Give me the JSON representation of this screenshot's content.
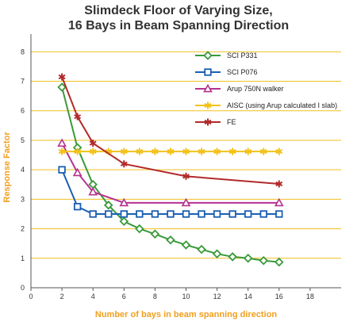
{
  "chart_data": {
    "type": "line",
    "title": "Slimdeck Floor of Varying Size,",
    "subtitle": "16 Bays in Beam Spanning Direction",
    "xlabel": "Number of bays in beam spanning direction",
    "ylabel": "Response Factor",
    "xlim": [
      0,
      20
    ],
    "ylim": [
      0,
      8.6
    ],
    "xticks": [
      "0",
      "2",
      "4",
      "6",
      "8",
      "10",
      "12",
      "14",
      "16",
      "18"
    ],
    "yticks": [
      "0",
      "1",
      "2",
      "3",
      "4",
      "5",
      "6",
      "7",
      "8"
    ],
    "grid": "horizontal",
    "legend_position": "top-right",
    "colors": {
      "axis_title": "#f0a020",
      "gridline": "#f0c020"
    },
    "series": [
      {
        "name": "SCI P331",
        "color": "#3a9a3a",
        "marker": "diamond",
        "x": [
          2,
          3,
          4,
          5,
          6,
          7,
          8,
          9,
          10,
          11,
          12,
          13,
          14,
          15,
          16
        ],
        "y": [
          6.8,
          4.75,
          3.5,
          2.8,
          2.25,
          2.0,
          1.82,
          1.62,
          1.45,
          1.3,
          1.15,
          1.05,
          1.0,
          0.92,
          0.87
        ]
      },
      {
        "name": "SCI P076",
        "color": "#1a5fb4",
        "marker": "square",
        "x": [
          2,
          3,
          4,
          5,
          6,
          7,
          8,
          9,
          10,
          11,
          12,
          13,
          14,
          15,
          16
        ],
        "y": [
          4.0,
          2.75,
          2.5,
          2.5,
          2.5,
          2.5,
          2.5,
          2.5,
          2.5,
          2.5,
          2.5,
          2.5,
          2.5,
          2.5,
          2.5
        ]
      },
      {
        "name": "Arup 750N walker",
        "color": "#b5318f",
        "marker": "triangle",
        "x": [
          2,
          3,
          4,
          6,
          10,
          16
        ],
        "y": [
          4.9,
          3.9,
          3.25,
          2.88,
          2.88,
          2.88
        ]
      },
      {
        "name": "AISC (using Arup calculated I slab)",
        "color": "#f2c21b",
        "marker": "asterisk",
        "x": [
          2,
          3,
          4,
          5,
          6,
          7,
          8,
          9,
          10,
          11,
          12,
          13,
          14,
          15,
          16
        ],
        "y": [
          4.62,
          4.62,
          4.62,
          4.62,
          4.62,
          4.62,
          4.62,
          4.62,
          4.62,
          4.62,
          4.62,
          4.62,
          4.62,
          4.62,
          4.62
        ]
      },
      {
        "name": "FE",
        "color": "#b22a2a",
        "marker": "asterisk",
        "x": [
          2,
          3,
          4,
          6,
          10,
          16
        ],
        "y": [
          7.15,
          5.8,
          4.9,
          4.2,
          3.78,
          3.52
        ]
      }
    ]
  }
}
